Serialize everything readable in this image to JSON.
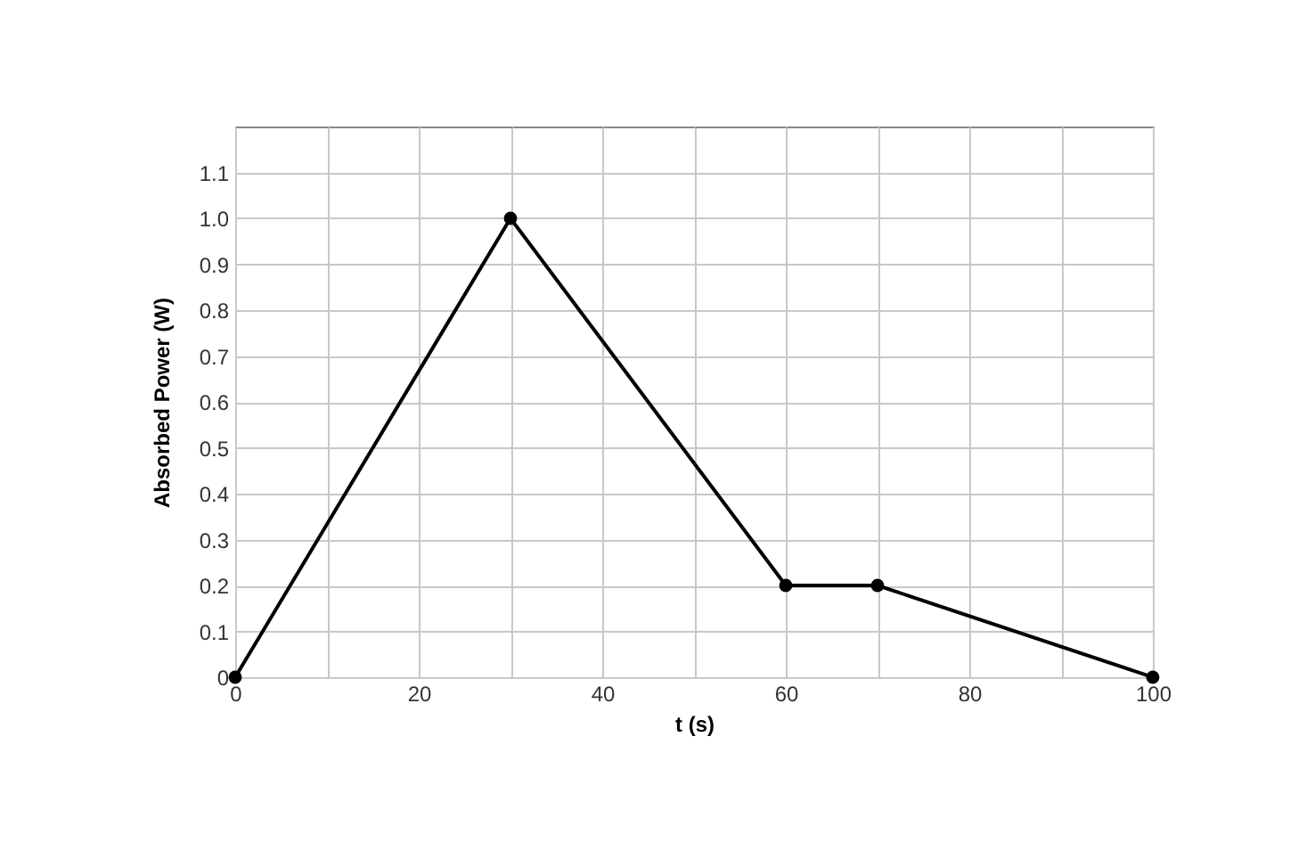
{
  "chart_data": {
    "type": "line",
    "xlabel": "t (s)",
    "ylabel": "Absorbed Power (W)",
    "x": [
      0,
      30,
      60,
      70,
      100
    ],
    "series": [
      {
        "color": "#000000",
        "values": [
          0,
          1.0,
          0.2,
          0.2,
          0
        ]
      }
    ],
    "xlim": [
      0,
      100
    ],
    "xticks": [
      0,
      {
        "value": 10,
        "label": null
      },
      20,
      {
        "value": 30,
        "label": null
      },
      40,
      {
        "value": 50,
        "label": null
      },
      60,
      {
        "value": 70,
        "label": null
      },
      80,
      {
        "value": 90,
        "label": null
      },
      100
    ],
    "ylim": [
      0,
      1.2
    ],
    "yticks": [
      0,
      0.1,
      0.2,
      0.3,
      0.4,
      0.5,
      0.6,
      0.7,
      0.8,
      0.9,
      {
        "value": 1,
        "label": "1.0"
      },
      1.1
    ],
    "grid": true,
    "marker": "circle",
    "line_style": "solid"
  }
}
